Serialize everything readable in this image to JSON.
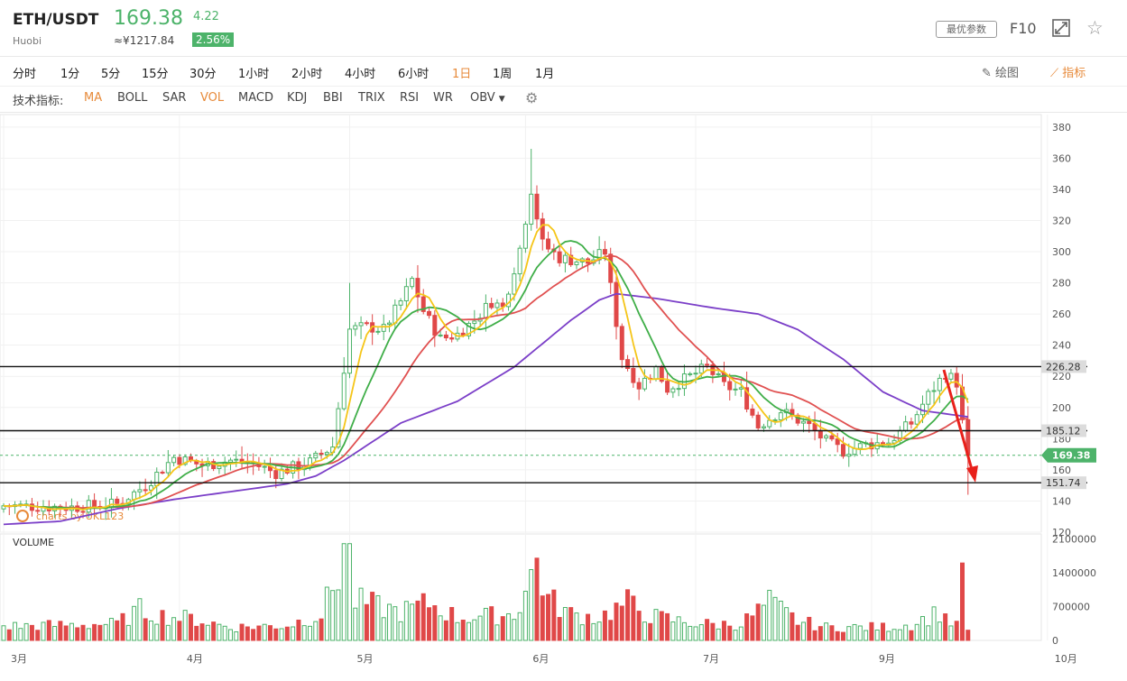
{
  "header": {
    "symbol": "ETH/USDT",
    "exchange": "Huobi",
    "price": "169.38",
    "change": "4.22",
    "cny_price": "≈¥1217.84",
    "change_pct": "2.56%",
    "param_button": "最优参数",
    "f10_label": "F10",
    "icons": [
      "expand-icon",
      "star-icon"
    ]
  },
  "timeframes": [
    "分时",
    "1分",
    "5分",
    "15分",
    "30分",
    "1小时",
    "2小时",
    "4小时",
    "6小时",
    "1日",
    "1周",
    "1月"
  ],
  "active_timeframe": "1日",
  "tools": {
    "draw_label": "绘图",
    "indicator_label": "指标"
  },
  "indicators": {
    "label": "技术指标:",
    "items": [
      "MA",
      "BOLL",
      "SAR",
      "VOL",
      "MACD",
      "KDJ",
      "BBI",
      "TRIX",
      "RSI",
      "WR",
      "OBV"
    ],
    "active": [
      "MA",
      "VOL"
    ]
  },
  "colors": {
    "up": "#4db36a",
    "down": "#e04848",
    "ma5": "#f5c518",
    "ma10": "#3fae48",
    "ma20": "#e05050",
    "ma60": "#7b3fc8",
    "accent": "#e78a3a",
    "arrow": "#e8201a"
  },
  "chart_data": {
    "type": "candlestick",
    "watermark": "charts by UKL123",
    "volume_label": "VOLUME",
    "y_ticks": [
      "380",
      "360",
      "340",
      "320",
      "300",
      "280",
      "260",
      "240",
      "220",
      "200",
      "180",
      "160",
      "140",
      "120"
    ],
    "y_range": [
      120,
      388
    ],
    "volume_ticks": [
      "2100000",
      "1400000",
      "700000",
      "0"
    ],
    "volume_range": [
      0,
      2200000
    ],
    "x_labels": [
      "3月",
      "4月",
      "5月",
      "6月",
      "7月",
      "9月",
      "10月"
    ],
    "x_label_days": [
      0,
      31,
      61,
      92,
      122,
      153,
      184
    ],
    "levels": [
      {
        "value": 226.28,
        "label": "226.28"
      },
      {
        "value": 185.12,
        "label": "185.12"
      },
      {
        "value": 151.74,
        "label": "151.74"
      }
    ],
    "current_price": {
      "value": 169.38,
      "label": "169.38"
    },
    "price_anchors": [
      [
        0,
        137
      ],
      [
        12,
        136
      ],
      [
        20,
        138
      ],
      [
        25,
        150
      ],
      [
        30,
        168
      ],
      [
        35,
        163
      ],
      [
        40,
        166
      ],
      [
        44,
        164
      ],
      [
        48,
        158
      ],
      [
        54,
        165
      ],
      [
        58,
        175
      ],
      [
        61,
        250
      ],
      [
        64,
        252
      ],
      [
        67,
        250
      ],
      [
        70,
        268
      ],
      [
        72,
        282
      ],
      [
        74,
        262
      ],
      [
        77,
        244
      ],
      [
        80,
        247
      ],
      [
        83,
        256
      ],
      [
        86,
        268
      ],
      [
        88,
        264
      ],
      [
        91,
        302
      ],
      [
        93,
        340
      ],
      [
        95,
        305
      ],
      [
        98,
        296
      ],
      [
        103,
        293
      ],
      [
        106,
        300
      ],
      [
        109,
        232
      ],
      [
        112,
        214
      ],
      [
        115,
        225
      ],
      [
        117,
        212
      ],
      [
        120,
        218
      ],
      [
        124,
        226
      ],
      [
        127,
        214
      ],
      [
        130,
        210
      ],
      [
        133,
        188
      ],
      [
        137,
        198
      ],
      [
        142,
        188
      ],
      [
        145,
        178
      ],
      [
        148,
        172
      ],
      [
        152,
        176
      ],
      [
        156,
        178
      ],
      [
        160,
        190
      ],
      [
        163,
        208
      ],
      [
        166,
        222
      ],
      [
        168,
        216
      ],
      [
        169,
        190
      ],
      [
        170,
        169.38
      ]
    ],
    "ma60_anchors": [
      [
        0,
        125
      ],
      [
        10,
        127
      ],
      [
        20,
        135
      ],
      [
        30,
        141
      ],
      [
        40,
        146
      ],
      [
        50,
        151
      ],
      [
        55,
        156
      ],
      [
        60,
        166
      ],
      [
        70,
        190
      ],
      [
        80,
        204
      ],
      [
        90,
        226
      ],
      [
        100,
        256
      ],
      [
        105,
        269
      ],
      [
        108,
        273
      ],
      [
        115,
        270
      ],
      [
        125,
        264
      ],
      [
        133,
        260
      ],
      [
        140,
        250
      ],
      [
        148,
        231
      ],
      [
        155,
        210
      ],
      [
        162,
        198
      ],
      [
        166,
        196
      ],
      [
        170,
        194
      ]
    ],
    "volume_anchors": [
      [
        0,
        320000
      ],
      [
        20,
        380000
      ],
      [
        24,
        700000
      ],
      [
        28,
        560000
      ],
      [
        33,
        500000
      ],
      [
        40,
        300000
      ],
      [
        50,
        340000
      ],
      [
        56,
        600000
      ],
      [
        58,
        1200000
      ],
      [
        60,
        1900000
      ],
      [
        62,
        900000
      ],
      [
        70,
        650000
      ],
      [
        75,
        850000
      ],
      [
        80,
        520000
      ],
      [
        85,
        560000
      ],
      [
        90,
        600000
      ],
      [
        92,
        1150000
      ],
      [
        94,
        1750000
      ],
      [
        96,
        950000
      ],
      [
        100,
        600000
      ],
      [
        105,
        520000
      ],
      [
        110,
        860000
      ],
      [
        114,
        560000
      ],
      [
        120,
        420000
      ],
      [
        125,
        360000
      ],
      [
        130,
        380000
      ],
      [
        135,
        860000
      ],
      [
        140,
        440000
      ],
      [
        145,
        300000
      ],
      [
        150,
        300000
      ],
      [
        155,
        300000
      ],
      [
        160,
        360000
      ],
      [
        165,
        650000
      ],
      [
        168,
        320000
      ],
      [
        169,
        1600000
      ],
      [
        170,
        200000
      ]
    ]
  }
}
